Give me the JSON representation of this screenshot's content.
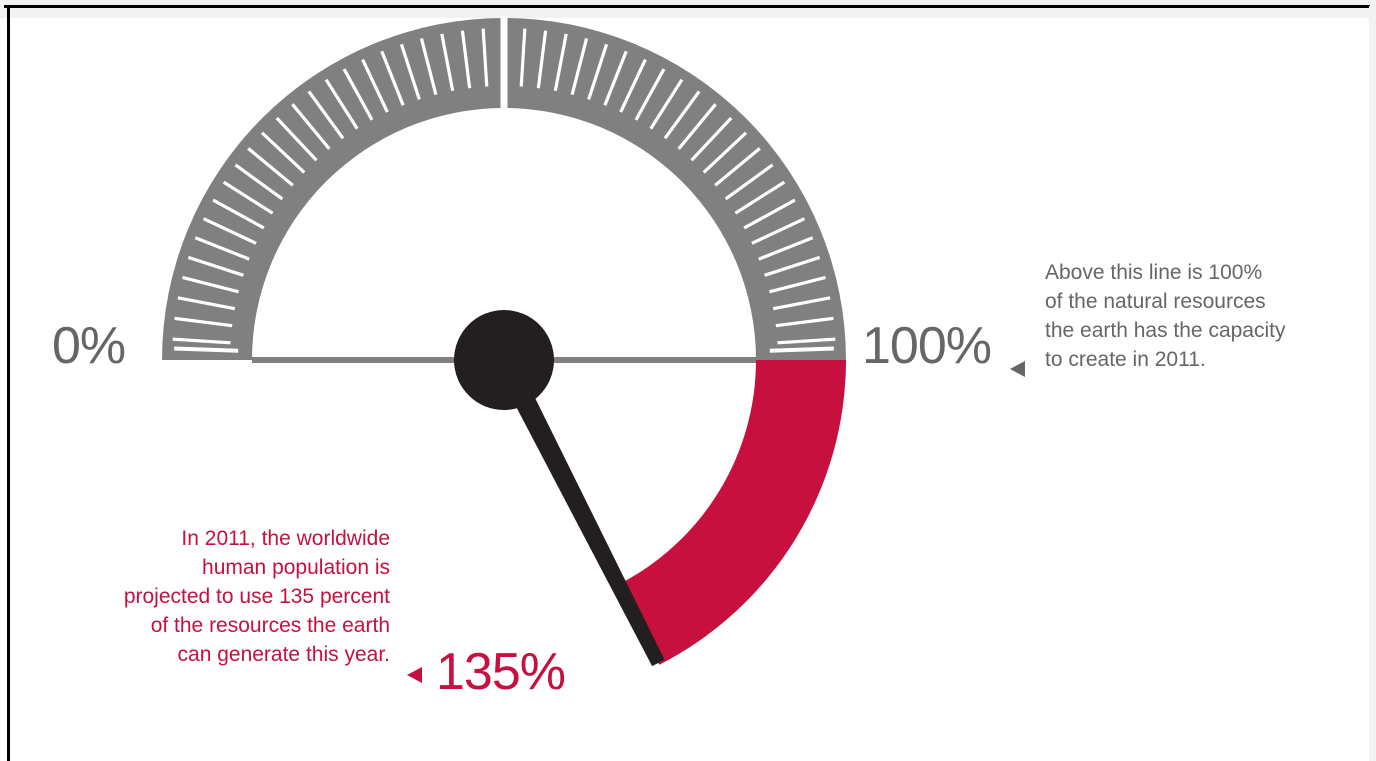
{
  "chart_data": {
    "type": "gauge",
    "title": "",
    "scale_labels": {
      "min": "0%",
      "max": "100%"
    },
    "min": 0,
    "max": 100,
    "value": 135,
    "value_label": "135%",
    "overflow_range": [
      100,
      135
    ],
    "annotations": {
      "capacity": [
        "Above this line is  100%",
        "of the natural resources",
        "the earth has the capacity",
        "to create in 2011."
      ],
      "usage": [
        "In 2011, the worldwide",
        "human population is",
        "projected to use 135 percent",
        "of the resources the earth",
        "can generate this year."
      ]
    },
    "colors": {
      "scale": "#808080",
      "overflow": "#c8103f",
      "needle": "#231f20",
      "label_gray": "#666666",
      "label_red": "#c8103f"
    }
  }
}
